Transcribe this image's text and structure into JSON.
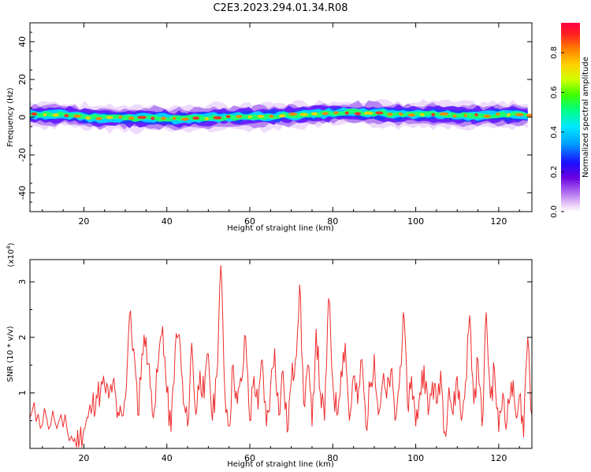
{
  "title": "C2E3.2023.294.01.34.R08",
  "chart_data": [
    {
      "type": "heatmap",
      "xlabel": "Height of straight line (km)",
      "ylabel": "Frequency (Hz)",
      "xlim": [
        7,
        128
      ],
      "ylim": [
        -50,
        50
      ],
      "xticks": [
        20,
        40,
        60,
        80,
        100,
        120
      ],
      "yticks": [
        -40,
        -20,
        0,
        20,
        40
      ],
      "colorbar": {
        "label": "Normalized spectral amplitude",
        "range": [
          0,
          0.95
        ],
        "ticks": [
          "0.0",
          "0.2",
          "0.4",
          "0.6",
          "0.8"
        ],
        "colormap": [
          "#ffffff",
          "#e8c8f8",
          "#b070f0",
          "#6a00e0",
          "#1a10ff",
          "#00a0ff",
          "#00e8ff",
          "#00ff80",
          "#40ff00",
          "#d0ff00",
          "#ffd000",
          "#ff8000",
          "#ff2020",
          "#ff0040"
        ]
      },
      "band": {
        "center_line_hz": [
          [
            7,
            1.5
          ],
          [
            12,
            1.5
          ],
          [
            17,
            1.0
          ],
          [
            22,
            -0.3
          ],
          [
            27,
            -0.2
          ],
          [
            32,
            -0.5
          ],
          [
            37,
            -0.4
          ],
          [
            42,
            -0.8
          ],
          [
            47,
            -0.5
          ],
          [
            52,
            -0.2
          ],
          [
            57,
            0.2
          ],
          [
            62,
            0.4
          ],
          [
            67,
            0.8
          ],
          [
            72,
            1.2
          ],
          [
            77,
            1.8
          ],
          [
            82,
            2.5
          ],
          [
            87,
            2.3
          ],
          [
            92,
            2.0
          ],
          [
            97,
            1.5
          ],
          [
            102,
            1.8
          ],
          [
            107,
            1.5
          ],
          [
            112,
            0.8
          ],
          [
            117,
            1.0
          ],
          [
            122,
            1.2
          ],
          [
            128,
            1.0
          ]
        ],
        "core_width_hz": 4,
        "halo_width_hz": 10
      }
    },
    {
      "type": "line",
      "xlabel": "Height of straight line (km)",
      "ylabel": "SNR (10 * v/v)",
      "scale_note": "(x10",
      "scale_exp": "4",
      "scale_close": ")",
      "xlim": [
        7,
        128
      ],
      "ylim": [
        0,
        3.4
      ],
      "xticks": [
        20,
        40,
        60,
        80,
        100,
        120
      ],
      "yticks": [
        1,
        2,
        3
      ],
      "series": [
        {
          "color": "#ee2b2b",
          "points": [
            [
              7,
              0.55
            ],
            [
              9,
              0.62
            ],
            [
              11,
              0.55
            ],
            [
              13,
              0.48
            ],
            [
              15,
              0.38
            ],
            [
              17,
              0.22
            ],
            [
              18,
              0.1
            ],
            [
              19,
              0.18
            ],
            [
              20,
              0.35
            ],
            [
              21,
              0.55
            ],
            [
              22,
              0.75
            ],
            [
              23,
              0.95
            ],
            [
              24,
              1.02
            ],
            [
              25,
              1.12
            ],
            [
              26,
              0.9
            ],
            [
              27,
              1.2
            ],
            [
              28,
              0.55
            ],
            [
              29,
              0.65
            ],
            [
              30,
              0.9
            ],
            [
              31,
              2.4
            ],
            [
              32,
              1.8
            ],
            [
              33,
              0.6
            ],
            [
              34,
              1.7
            ],
            [
              35,
              2.0
            ],
            [
              36,
              1.1
            ],
            [
              37,
              0.7
            ],
            [
              38,
              1.6
            ],
            [
              39,
              2.2
            ],
            [
              40,
              1.0
            ],
            [
              41,
              0.3
            ],
            [
              42,
              1.8
            ],
            [
              43,
              2.05
            ],
            [
              44,
              0.8
            ],
            [
              45,
              0.4
            ],
            [
              46,
              1.9
            ],
            [
              47,
              0.6
            ],
            [
              48,
              1.4
            ],
            [
              49,
              0.9
            ],
            [
              50,
              1.7
            ],
            [
              51,
              0.5
            ],
            [
              52,
              1.3
            ],
            [
              53,
              3.3
            ],
            [
              54,
              1.0
            ],
            [
              55,
              0.4
            ],
            [
              56,
              1.5
            ],
            [
              57,
              0.8
            ],
            [
              58,
              1.2
            ],
            [
              59,
              2.0
            ],
            [
              60,
              0.5
            ],
            [
              61,
              1.3
            ],
            [
              62,
              0.7
            ],
            [
              63,
              1.6
            ],
            [
              64,
              0.4
            ],
            [
              65,
              1.1
            ],
            [
              66,
              1.8
            ],
            [
              67,
              0.6
            ],
            [
              68,
              1.4
            ],
            [
              69,
              0.3
            ],
            [
              70,
              1.2
            ],
            [
              71,
              1.6
            ],
            [
              72,
              2.95
            ],
            [
              73,
              0.8
            ],
            [
              74,
              1.5
            ],
            [
              75,
              0.4
            ],
            [
              76,
              2.15
            ],
            [
              77,
              1.0
            ],
            [
              78,
              0.5
            ],
            [
              79,
              2.7
            ],
            [
              80,
              1.2
            ],
            [
              81,
              0.6
            ],
            [
              82,
              1.4
            ],
            [
              83,
              1.9
            ],
            [
              84,
              0.5
            ],
            [
              85,
              1.3
            ],
            [
              86,
              0.8
            ],
            [
              87,
              1.6
            ],
            [
              88,
              0.4
            ],
            [
              89,
              1.1
            ],
            [
              90,
              1.7
            ],
            [
              91,
              0.6
            ],
            [
              92,
              1.2
            ],
            [
              93,
              0.9
            ],
            [
              94,
              1.4
            ],
            [
              95,
              0.5
            ],
            [
              96,
              1.1
            ],
            [
              97,
              2.45
            ],
            [
              98,
              0.8
            ],
            [
              99,
              1.3
            ],
            [
              100,
              0.4
            ],
            [
              101,
              1.0
            ],
            [
              102,
              1.5
            ],
            [
              103,
              0.6
            ],
            [
              104,
              1.2
            ],
            [
              105,
              0.8
            ],
            [
              106,
              1.4
            ],
            [
              107,
              0.3
            ],
            [
              108,
              1.1
            ],
            [
              109,
              0.6
            ],
            [
              110,
              1.3
            ],
            [
              111,
              0.5
            ],
            [
              112,
              1.2
            ],
            [
              113,
              2.4
            ],
            [
              114,
              0.8
            ],
            [
              115,
              1.6
            ],
            [
              116,
              0.4
            ],
            [
              117,
              2.45
            ],
            [
              118,
              0.9
            ],
            [
              119,
              1.4
            ],
            [
              120,
              0.3
            ],
            [
              121,
              1.0
            ],
            [
              122,
              0.5
            ],
            [
              123,
              1.2
            ],
            [
              124,
              0.7
            ],
            [
              125,
              0.95
            ],
            [
              126,
              0.2
            ],
            [
              127,
              2.0
            ],
            [
              128,
              0.6
            ]
          ]
        }
      ]
    }
  ]
}
